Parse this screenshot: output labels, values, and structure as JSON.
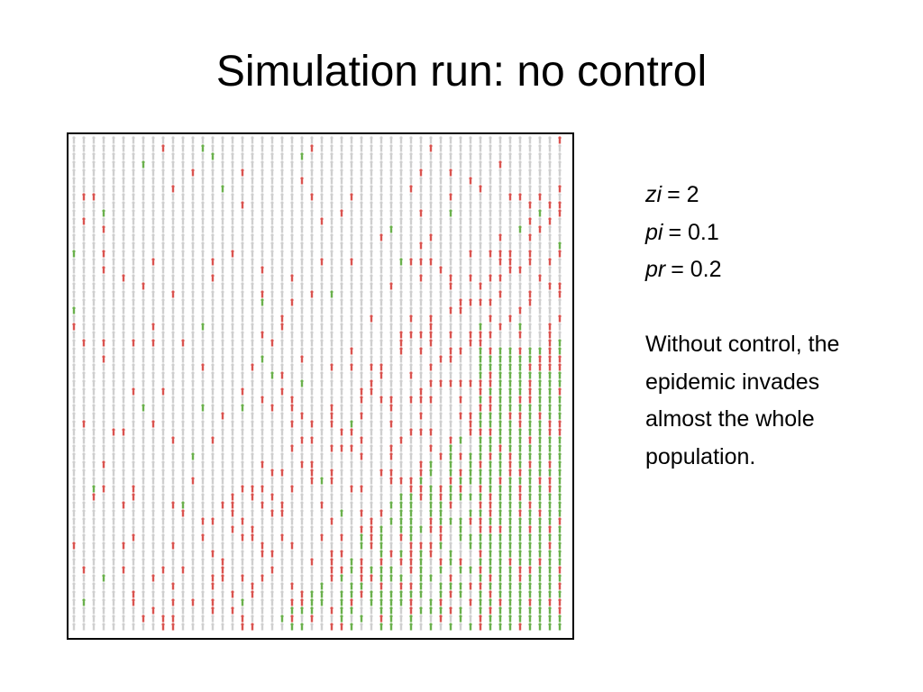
{
  "slide": {
    "title": "Simulation run: no control",
    "params": [
      {
        "name": "zi",
        "value": "= 2"
      },
      {
        "name": "pi",
        "value": "= 0.1"
      },
      {
        "name": "pr",
        "value": "= 0.2"
      }
    ],
    "description": "Without control, the epidemic invades almost the whole population."
  }
}
